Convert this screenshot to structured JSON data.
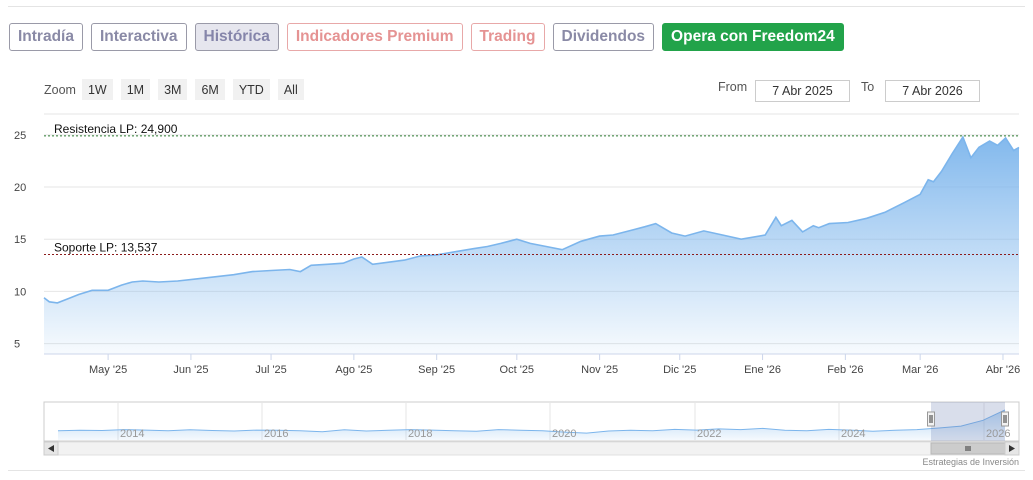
{
  "tabs": [
    {
      "label": "Intradía",
      "state": "default"
    },
    {
      "label": "Interactiva",
      "state": "default"
    },
    {
      "label": "Histórica",
      "state": "active"
    },
    {
      "label": "Indicadores Premium",
      "state": "red"
    },
    {
      "label": "Trading",
      "state": "red"
    },
    {
      "label": "Dividendos",
      "state": "default"
    },
    {
      "label": "Opera con Freedom24",
      "state": "green"
    }
  ],
  "zoom": {
    "label": "Zoom",
    "buttons": [
      "1W",
      "1M",
      "3M",
      "6M",
      "YTD",
      "All"
    ]
  },
  "range": {
    "from_label": "From",
    "from_value": "7 Abr 2025",
    "to_label": "To",
    "to_value": "7 Abr 2026"
  },
  "credit": "Estrategias de Inversión",
  "colors": {
    "series_line": "#7cb5ec",
    "resistance_line": "#2e7d32",
    "support_line": "#8b1a1a",
    "active_button": "#22a34a"
  },
  "chart_data": {
    "type": "area",
    "ylim": [
      4,
      27
    ],
    "yticks": [
      5,
      10,
      15,
      20,
      25
    ],
    "xticks": [
      {
        "label": "May '25",
        "date": "2025-05-01"
      },
      {
        "label": "Jun '25",
        "date": "2025-06-01"
      },
      {
        "label": "Jul '25",
        "date": "2025-07-01"
      },
      {
        "label": "Ago '25",
        "date": "2025-08-01"
      },
      {
        "label": "Sep '25",
        "date": "2025-09-01"
      },
      {
        "label": "Oct '25",
        "date": "2025-10-01"
      },
      {
        "label": "Nov '25",
        "date": "2025-11-01"
      },
      {
        "label": "Dic '25",
        "date": "2025-12-01"
      },
      {
        "label": "Ene '26",
        "date": "2026-01-01"
      },
      {
        "label": "Feb '26",
        "date": "2026-02-01"
      },
      {
        "label": "Mar '26",
        "date": "2026-03-01"
      },
      {
        "label": "Abr '26",
        "date": "2026-04-01"
      }
    ],
    "x_range": [
      "2025-04-07",
      "2026-04-07"
    ],
    "levels": [
      {
        "label": "Resistencia LP: 24,900",
        "value": 24.9,
        "style": "resistance"
      },
      {
        "label": "Soporte LP: 13,537",
        "value": 13.537,
        "style": "support"
      }
    ],
    "series": [
      {
        "x": [
          "2025-04-07",
          "2025-04-09",
          "2025-04-12",
          "2025-04-16",
          "2025-04-20",
          "2025-04-25",
          "2025-05-01",
          "2025-05-06",
          "2025-05-10",
          "2025-05-14",
          "2025-05-20",
          "2025-05-27",
          "2025-06-03",
          "2025-06-10",
          "2025-06-17",
          "2025-06-24",
          "2025-07-01",
          "2025-07-08",
          "2025-07-12",
          "2025-07-16",
          "2025-07-22",
          "2025-07-28",
          "2025-08-01",
          "2025-08-04",
          "2025-08-08",
          "2025-08-14",
          "2025-08-20",
          "2025-08-26",
          "2025-09-01",
          "2025-09-08",
          "2025-09-15",
          "2025-09-20",
          "2025-09-25",
          "2025-10-01",
          "2025-10-06",
          "2025-10-12",
          "2025-10-18",
          "2025-10-25",
          "2025-11-01",
          "2025-11-06",
          "2025-11-12",
          "2025-11-18",
          "2025-11-22",
          "2025-11-28",
          "2025-12-03",
          "2025-12-10",
          "2025-12-17",
          "2025-12-24",
          "2026-01-02",
          "2026-01-06",
          "2026-01-08",
          "2026-01-12",
          "2026-01-16",
          "2026-01-20",
          "2026-01-22",
          "2026-01-26",
          "2026-02-02",
          "2026-02-09",
          "2026-02-16",
          "2026-02-23",
          "2026-03-01",
          "2026-03-04",
          "2026-03-06",
          "2026-03-09",
          "2026-03-13",
          "2026-03-17",
          "2026-03-20",
          "2026-03-23",
          "2026-03-27",
          "2026-03-30",
          "2026-04-02",
          "2026-04-05",
          "2026-04-07"
        ],
        "y": [
          9.4,
          9.0,
          8.9,
          9.3,
          9.7,
          10.1,
          10.1,
          10.6,
          10.9,
          11.0,
          10.9,
          11.0,
          11.2,
          11.4,
          11.6,
          11.9,
          12.0,
          12.1,
          11.9,
          12.5,
          12.6,
          12.7,
          13.1,
          13.3,
          12.6,
          12.8,
          13.0,
          13.4,
          13.5,
          13.8,
          14.1,
          14.3,
          14.6,
          15.0,
          14.6,
          14.3,
          14.0,
          14.8,
          15.3,
          15.4,
          15.8,
          16.2,
          16.5,
          15.6,
          15.3,
          15.8,
          15.4,
          15.0,
          15.4,
          17.1,
          16.3,
          16.8,
          15.7,
          16.3,
          16.1,
          16.5,
          16.6,
          17.0,
          17.6,
          18.5,
          19.3,
          20.7,
          20.5,
          21.5,
          23.2,
          24.8,
          22.8,
          23.8,
          24.4,
          24.0,
          24.7,
          23.5,
          23.8
        ]
      }
    ],
    "navigator": {
      "labels": [
        "2014",
        "2016",
        "2018",
        "2020",
        "2022",
        "2024",
        "2026"
      ],
      "y": [
        4.0,
        4.2,
        4.1,
        4.5,
        4.3,
        4.0,
        4.4,
        4.1,
        3.9,
        4.3,
        4.2,
        4.0,
        3.6,
        4.4,
        3.9,
        4.2,
        4.5,
        4.3,
        4.0,
        3.8,
        4.5,
        4.2,
        4.0,
        3.4,
        3.0,
        3.9,
        4.2,
        4.0,
        4.6,
        4.3,
        4.8,
        4.5,
        5.0,
        4.2,
        4.0,
        4.6,
        4.3,
        3.8,
        4.2,
        4.5,
        5.2,
        6.0,
        8.5,
        13.0
      ]
    }
  }
}
